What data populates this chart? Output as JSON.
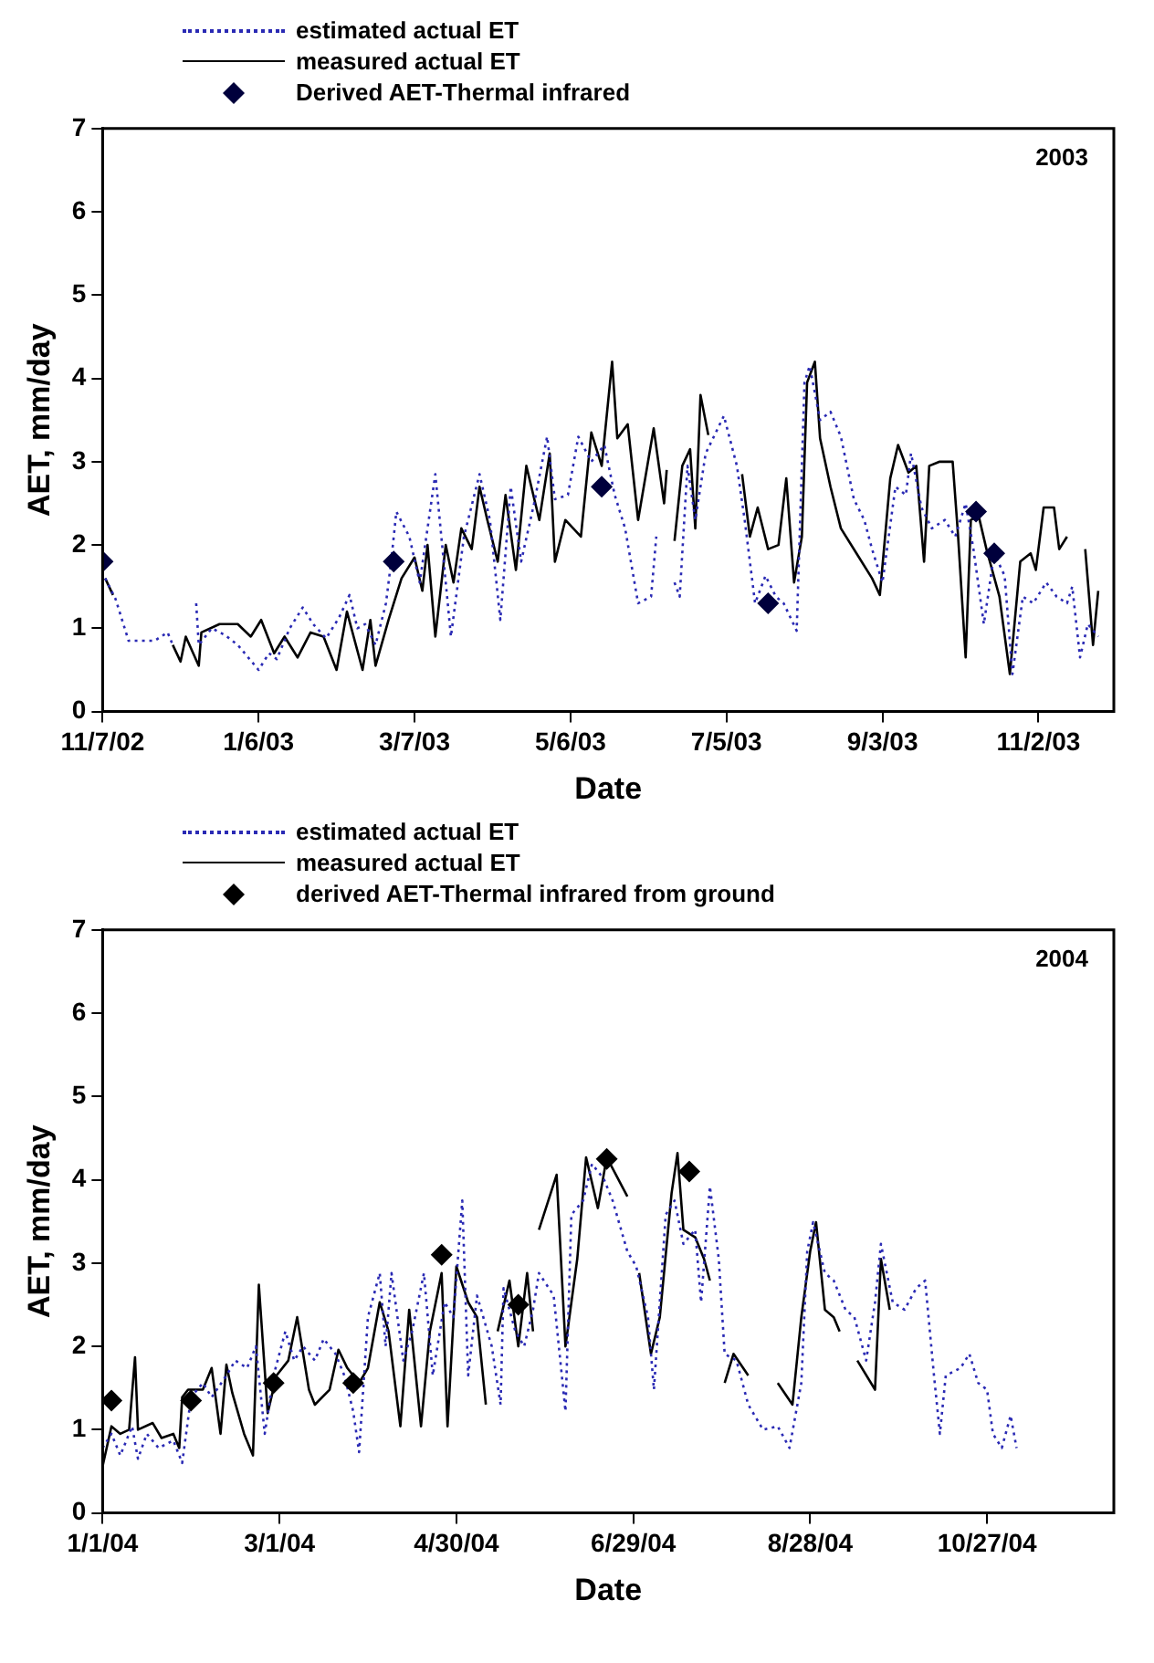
{
  "chart_data": [
    {
      "type": "line",
      "xlabel": "Date",
      "ylabel": "AET, mm/day",
      "annotations": [
        "2003"
      ],
      "legend": "top left",
      "xlim": [
        "2002-11-07",
        "2003-12-01"
      ],
      "xticks": [
        {
          "value": "2002-11-07",
          "label": "11/7/02"
        },
        {
          "value": "2003-01-06",
          "label": "1/6/03"
        },
        {
          "value": "2003-03-07",
          "label": "3/7/03"
        },
        {
          "value": "2003-05-06",
          "label": "5/6/03"
        },
        {
          "value": "2003-07-05",
          "label": "7/5/03"
        },
        {
          "value": "2003-09-03",
          "label": "9/3/03"
        },
        {
          "value": "2003-11-02",
          "label": "11/2/03"
        }
      ],
      "ylim": [
        0,
        7
      ],
      "yticks": [
        0,
        1,
        2,
        3,
        4,
        5,
        6,
        7
      ],
      "series": [
        {
          "name": "estimated actual ET",
          "type": "line",
          "line_style": "dotted",
          "marker": "none",
          "color": "#2a2ab4",
          "x": [
            "2002-11-08",
            "2002-11-12",
            "2002-11-17",
            "2002-11-18",
            "2002-11-27",
            "2002-12-02",
            "2002-12-04",
            "2002-12-06",
            "2002-12-13",
            "2002-12-14",
            "2002-12-19",
            "2002-12-24",
            "2002-12-29",
            "2003-01-06",
            "2003-01-10",
            "2003-01-13",
            "2003-01-18",
            "2003-01-23",
            "2003-01-27",
            "2003-02-01",
            "2003-02-06",
            "2003-02-10",
            "2003-02-13",
            "2003-02-16",
            "2003-02-20",
            "2003-02-24",
            "2003-02-26",
            "2003-02-28",
            "2003-03-05",
            "2003-03-09",
            "2003-03-15",
            "2003-03-19",
            "2003-03-21",
            "2003-03-26",
            "2003-04-01",
            "2003-04-05",
            "2003-04-09",
            "2003-04-13",
            "2003-04-17",
            "2003-04-22",
            "2003-04-27",
            "2003-04-30",
            "2003-05-05",
            "2003-05-09",
            "2003-05-14",
            "2003-05-19",
            "2003-05-23",
            "2003-05-27",
            "2003-06-01",
            "2003-06-06",
            "2003-06-08",
            "2003-06-10",
            "2003-06-15",
            "2003-06-17",
            "2003-06-20",
            "2003-06-23",
            "2003-06-27",
            "2003-07-04",
            "2003-07-09",
            "2003-07-12",
            "2003-07-16",
            "2003-07-20",
            "2003-07-24",
            "2003-07-27",
            "2003-08-01",
            "2003-08-04",
            "2003-08-06",
            "2003-08-10",
            "2003-08-14",
            "2003-08-18",
            "2003-08-23",
            "2003-08-27",
            "2003-08-30",
            "2003-09-03",
            "2003-09-08",
            "2003-09-12",
            "2003-09-14",
            "2003-09-18",
            "2003-09-22",
            "2003-09-27",
            "2003-10-01",
            "2003-10-05",
            "2003-10-08",
            "2003-10-12",
            "2003-10-16",
            "2003-10-20",
            "2003-10-23",
            "2003-10-27",
            "2003-10-31",
            "2003-11-05",
            "2003-11-09",
            "2003-11-13",
            "2003-11-15",
            "2003-11-18",
            "2003-11-21",
            "2003-11-25"
          ],
          "values": [
            1.6,
            1.35,
            0.85,
            0.85,
            0.85,
            0.95,
            0.8,
            null,
            1.3,
            0.8,
            1.0,
            0.92,
            0.8,
            0.5,
            0.7,
            0.63,
            1.0,
            1.25,
            1.05,
            0.88,
            1.13,
            1.4,
            1.0,
            1.05,
            0.8,
            1.3,
            1.8,
            2.4,
            2.1,
            1.55,
            2.85,
            1.55,
            0.9,
            2.1,
            2.85,
            2.3,
            1.1,
            2.7,
            1.8,
            2.5,
            3.3,
            2.55,
            2.6,
            3.3,
            3.0,
            3.2,
            2.6,
            2.2,
            1.3,
            1.38,
            2.1,
            null,
            1.55,
            1.38,
            2.95,
            2.3,
            3.1,
            3.55,
            2.95,
            2.3,
            1.3,
            1.63,
            1.38,
            1.3,
            0.97,
            3.95,
            4.15,
            3.5,
            3.6,
            3.3,
            2.55,
            2.3,
            1.95,
            1.55,
            2.7,
            2.6,
            3.1,
            2.45,
            2.2,
            2.3,
            2.1,
            2.5,
            1.95,
            1.05,
            1.9,
            1.63,
            0.45,
            1.38,
            1.3,
            1.55,
            1.38,
            1.3,
            1.5,
            0.65,
            1.05,
            0.9
          ]
        },
        {
          "name": "measured actual ET",
          "type": "line",
          "line_style": "solid",
          "marker": "none",
          "color": "#000000",
          "x": [
            "2002-11-08",
            "2002-11-11",
            "2002-11-20",
            "2002-12-04",
            "2002-12-07",
            "2002-12-09",
            "2002-12-14",
            "2002-12-15",
            "2002-12-22",
            "2002-12-29",
            "2003-01-03",
            "2003-01-07",
            "2003-01-12",
            "2003-01-16",
            "2003-01-21",
            "2003-01-26",
            "2003-01-31",
            "2003-02-05",
            "2003-02-09",
            "2003-02-15",
            "2003-02-18",
            "2003-02-20",
            "2003-02-25",
            "2003-03-02",
            "2003-03-07",
            "2003-03-10",
            "2003-03-12",
            "2003-03-15",
            "2003-03-19",
            "2003-03-22",
            "2003-03-25",
            "2003-03-29",
            "2003-04-01",
            "2003-04-04",
            "2003-04-08",
            "2003-04-11",
            "2003-04-15",
            "2003-04-19",
            "2003-04-24",
            "2003-04-28",
            "2003-04-30",
            "2003-05-04",
            "2003-05-10",
            "2003-05-14",
            "2003-05-18",
            "2003-05-22",
            "2003-05-24",
            "2003-05-28",
            "2003-06-01",
            "2003-06-07",
            "2003-06-11",
            "2003-06-12",
            "2003-06-14",
            "2003-06-15",
            "2003-06-18",
            "2003-06-21",
            "2003-06-23",
            "2003-06-25",
            "2003-06-28",
            "2003-07-05",
            "2003-07-11",
            "2003-07-14",
            "2003-07-17",
            "2003-07-21",
            "2003-07-25",
            "2003-07-28",
            "2003-07-31",
            "2003-08-03",
            "2003-08-05",
            "2003-08-08",
            "2003-08-10",
            "2003-08-14",
            "2003-08-18",
            "2003-08-24",
            "2003-08-30",
            "2003-09-02",
            "2003-09-06",
            "2003-09-09",
            "2003-09-13",
            "2003-09-16",
            "2003-09-19",
            "2003-09-21",
            "2003-09-25",
            "2003-09-30",
            "2003-10-02",
            "2003-10-05",
            "2003-10-07",
            "2003-10-10",
            "2003-10-13",
            "2003-10-18",
            "2003-10-22",
            "2003-10-26",
            "2003-10-30",
            "2003-11-01",
            "2003-11-04",
            "2003-11-08",
            "2003-11-10",
            "2003-11-13",
            "2003-11-15",
            "2003-11-20",
            "2003-11-23",
            "2003-11-25"
          ],
          "values": [
            1.6,
            1.4,
            null,
            0.8,
            0.6,
            0.9,
            0.55,
            0.95,
            1.05,
            1.05,
            0.9,
            1.1,
            0.7,
            0.9,
            0.65,
            0.95,
            0.9,
            0.5,
            1.2,
            0.5,
            1.1,
            0.55,
            1.1,
            1.6,
            1.85,
            1.45,
            2.0,
            0.9,
            2.0,
            1.55,
            2.2,
            1.95,
            2.7,
            2.3,
            1.8,
            2.6,
            1.7,
            2.95,
            2.3,
            3.1,
            1.8,
            2.3,
            2.1,
            3.35,
            2.95,
            4.2,
            3.28,
            3.45,
            2.3,
            3.4,
            2.5,
            2.9,
            null,
            2.05,
            2.95,
            3.15,
            2.2,
            3.8,
            3.32,
            null,
            2.85,
            2.1,
            2.45,
            1.95,
            2.0,
            2.8,
            1.55,
            2.1,
            3.95,
            4.2,
            3.28,
            2.7,
            2.2,
            1.9,
            1.6,
            1.4,
            2.8,
            3.2,
            2.87,
            2.95,
            1.8,
            2.95,
            3.0,
            3.0,
            2.15,
            0.65,
            2.3,
            2.35,
            1.95,
            1.38,
            0.45,
            1.8,
            1.9,
            1.7,
            2.45,
            2.45,
            1.95,
            2.1,
            null,
            1.95,
            0.8,
            1.45
          ]
        },
        {
          "name": "Derived AET-Thermal infrared",
          "type": "scatter",
          "marker": "diamond",
          "color": "#00003c",
          "x": [
            "2002-11-07",
            "2003-02-27",
            "2003-05-18",
            "2003-07-21",
            "2003-10-09",
            "2003-10-16"
          ],
          "values": [
            1.8,
            1.8,
            2.7,
            1.3,
            2.4,
            1.9
          ]
        }
      ]
    },
    {
      "type": "line",
      "xlabel": "Date",
      "ylabel": "AET, mm/day",
      "annotations": [
        "2004"
      ],
      "legend": "top left",
      "xlim": [
        "2004-01-01",
        "2004-12-09"
      ],
      "xticks": [
        {
          "value": "2004-01-01",
          "label": "1/1/04"
        },
        {
          "value": "2004-03-01",
          "label": "3/1/04"
        },
        {
          "value": "2004-04-30",
          "label": "4/30/04"
        },
        {
          "value": "2004-06-29",
          "label": "6/29/04"
        },
        {
          "value": "2004-08-28",
          "label": "8/28/04"
        },
        {
          "value": "2004-10-27",
          "label": "10/27/04"
        }
      ],
      "ylim": [
        0,
        7
      ],
      "yticks": [
        0,
        1,
        2,
        3,
        4,
        5,
        6,
        7
      ],
      "series": [
        {
          "name": "estimated actual ET",
          "type": "line",
          "line_style": "dotted",
          "marker": "none",
          "color": "#2a2ab4",
          "x": [
            "2004-01-01",
            "2004-01-04",
            "2004-01-07",
            "2004-01-11",
            "2004-01-13",
            "2004-01-16",
            "2004-01-20",
            "2004-01-25",
            "2004-01-28",
            "2004-01-31",
            "2004-02-04",
            "2004-02-07",
            "2004-02-12",
            "2004-02-15",
            "2004-02-19",
            "2004-02-22",
            "2004-02-25",
            "2004-02-28",
            "2004-03-03",
            "2004-03-06",
            "2004-03-09",
            "2004-03-13",
            "2004-03-16",
            "2004-03-20",
            "2004-03-23",
            "2004-03-26",
            "2004-03-28",
            "2004-03-31",
            "2004-04-04",
            "2004-04-06",
            "2004-04-08",
            "2004-04-12",
            "2004-04-15",
            "2004-04-19",
            "2004-04-22",
            "2004-04-26",
            "2004-04-29",
            "2004-05-02",
            "2004-05-04",
            "2004-05-07",
            "2004-05-12",
            "2004-05-15",
            "2004-05-16",
            "2004-05-20",
            "2004-05-23",
            "2004-05-26",
            "2004-05-28",
            "2004-06-02",
            "2004-06-06",
            "2004-06-08",
            "2004-06-12",
            "2004-06-15",
            "2004-06-19",
            "2004-06-22",
            "2004-06-27",
            "2004-06-30",
            "2004-07-04",
            "2004-07-06",
            "2004-07-10",
            "2004-07-13",
            "2004-07-16",
            "2004-07-20",
            "2004-07-22",
            "2004-07-25",
            "2004-07-28",
            "2004-07-30",
            "2004-08-03",
            "2004-08-07",
            "2004-08-12",
            "2004-08-17",
            "2004-08-21",
            "2004-08-25",
            "2004-08-27",
            "2004-08-29",
            "2004-09-02",
            "2004-09-05",
            "2004-09-09",
            "2004-09-12",
            "2004-09-16",
            "2004-09-19",
            "2004-09-21",
            "2004-09-25",
            "2004-09-29",
            "2004-10-03",
            "2004-10-06",
            "2004-10-09",
            "2004-10-11",
            "2004-10-13",
            "2004-10-18",
            "2004-10-21",
            "2004-10-24",
            "2004-10-27",
            "2004-10-29",
            "2004-11-01",
            "2004-11-04",
            "2004-11-06"
          ],
          "values": [
            0.78,
            0.95,
            0.69,
            1.04,
            0.65,
            0.95,
            0.78,
            0.87,
            0.6,
            1.39,
            1.56,
            1.39,
            1.65,
            1.83,
            1.74,
            2.0,
            0.95,
            1.65,
            2.18,
            1.83,
            2.0,
            1.83,
            2.09,
            1.91,
            1.65,
            1.22,
            0.73,
            2.35,
            2.88,
            2.0,
            2.88,
            1.83,
            2.18,
            2.88,
            1.65,
            2.53,
            2.35,
            3.75,
            1.65,
            2.61,
            2.0,
            1.3,
            2.7,
            2.18,
            2.0,
            2.44,
            2.88,
            2.61,
            1.22,
            3.58,
            3.75,
            4.19,
            4.01,
            3.75,
            3.14,
            2.96,
            2.35,
            1.48,
            3.58,
            3.75,
            3.23,
            3.4,
            2.53,
            3.92,
            3.05,
            1.91,
            1.83,
            1.3,
            1.0,
            1.04,
            0.78,
            1.56,
            3.14,
            3.49,
            2.88,
            2.79,
            2.44,
            2.35,
            1.83,
            2.53,
            3.23,
            2.53,
            2.44,
            2.7,
            2.79,
            1.65,
            0.95,
            1.65,
            1.74,
            1.91,
            1.56,
            1.48,
            0.95,
            0.78,
            1.17,
            0.78
          ]
        },
        {
          "name": "measured actual ET",
          "type": "line",
          "line_style": "solid",
          "marker": "none",
          "color": "#000000",
          "x": [
            "2004-01-01",
            "2004-01-04",
            "2004-01-07",
            "2004-01-10",
            "2004-01-12",
            "2004-01-13",
            "2004-01-18",
            "2004-01-21",
            "2004-01-25",
            "2004-01-27",
            "2004-01-28",
            "2004-01-30",
            "2004-02-04",
            "2004-02-07",
            "2004-02-10",
            "2004-02-12",
            "2004-02-14",
            "2004-02-18",
            "2004-02-21",
            "2004-02-23",
            "2004-02-26",
            "2004-02-29",
            "2004-03-04",
            "2004-03-07",
            "2004-03-11",
            "2004-03-13",
            "2004-03-18",
            "2004-03-21",
            "2004-03-24",
            "2004-03-28",
            "2004-03-31",
            "2004-04-04",
            "2004-04-07",
            "2004-04-11",
            "2004-04-14",
            "2004-04-18",
            "2004-04-21",
            "2004-04-25",
            "2004-04-27",
            "2004-04-30",
            "2004-05-04",
            "2004-05-07",
            "2004-05-10",
            "2004-05-12",
            "2004-05-14",
            "2004-05-18",
            "2004-05-21",
            "2004-05-24",
            "2004-05-26",
            "2004-05-27",
            "2004-05-28",
            "2004-06-03",
            "2004-06-06",
            "2004-06-10",
            "2004-06-13",
            "2004-06-17",
            "2004-06-20",
            "2004-06-27",
            "2004-06-29",
            "2004-07-01",
            "2004-07-05",
            "2004-07-08",
            "2004-07-12",
            "2004-07-14",
            "2004-07-16",
            "2004-07-20",
            "2004-07-23",
            "2004-07-25",
            "2004-07-28",
            "2004-07-30",
            "2004-08-02",
            "2004-08-07",
            "2004-08-15",
            "2004-08-17",
            "2004-08-22",
            "2004-08-25",
            "2004-08-28",
            "2004-08-30",
            "2004-09-02",
            "2004-09-05",
            "2004-09-07",
            "2004-09-10",
            "2004-09-13",
            "2004-09-19",
            "2004-09-21",
            "2004-09-24"
          ],
          "values": [
            0.56,
            1.04,
            0.95,
            1.0,
            1.87,
            1.0,
            1.08,
            0.9,
            0.95,
            0.78,
            1.39,
            1.48,
            1.48,
            1.74,
            0.95,
            1.78,
            1.44,
            0.95,
            0.69,
            2.74,
            1.2,
            1.65,
            1.83,
            2.35,
            1.48,
            1.3,
            1.48,
            1.96,
            1.74,
            1.56,
            1.74,
            2.53,
            2.18,
            1.04,
            2.44,
            1.04,
            2.18,
            2.88,
            1.04,
            2.96,
            2.53,
            2.35,
            1.3,
            null,
            2.18,
            2.79,
            2.0,
            2.88,
            2.18,
            null,
            3.4,
            4.06,
            2.0,
            3.05,
            4.27,
            3.66,
            4.27,
            3.8,
            null,
            2.88,
            1.91,
            2.35,
            3.84,
            4.32,
            3.4,
            3.31,
            3.05,
            2.79,
            null,
            1.56,
            1.91,
            1.65,
            null,
            1.56,
            1.3,
            2.35,
            3.14,
            3.49,
            2.44,
            2.35,
            2.18,
            null,
            1.83,
            1.48,
            3.05,
            2.44
          ]
        },
        {
          "name": "derived AET-Thermal infrared from ground",
          "type": "scatter",
          "marker": "diamond",
          "color": "#000000",
          "x": [
            "2004-01-04",
            "2004-01-31",
            "2004-02-28",
            "2004-03-26",
            "2004-04-25",
            "2004-05-21",
            "2004-06-20",
            "2004-07-18"
          ],
          "values": [
            1.35,
            1.35,
            1.56,
            1.56,
            3.1,
            2.5,
            4.25,
            4.1
          ]
        }
      ]
    }
  ]
}
